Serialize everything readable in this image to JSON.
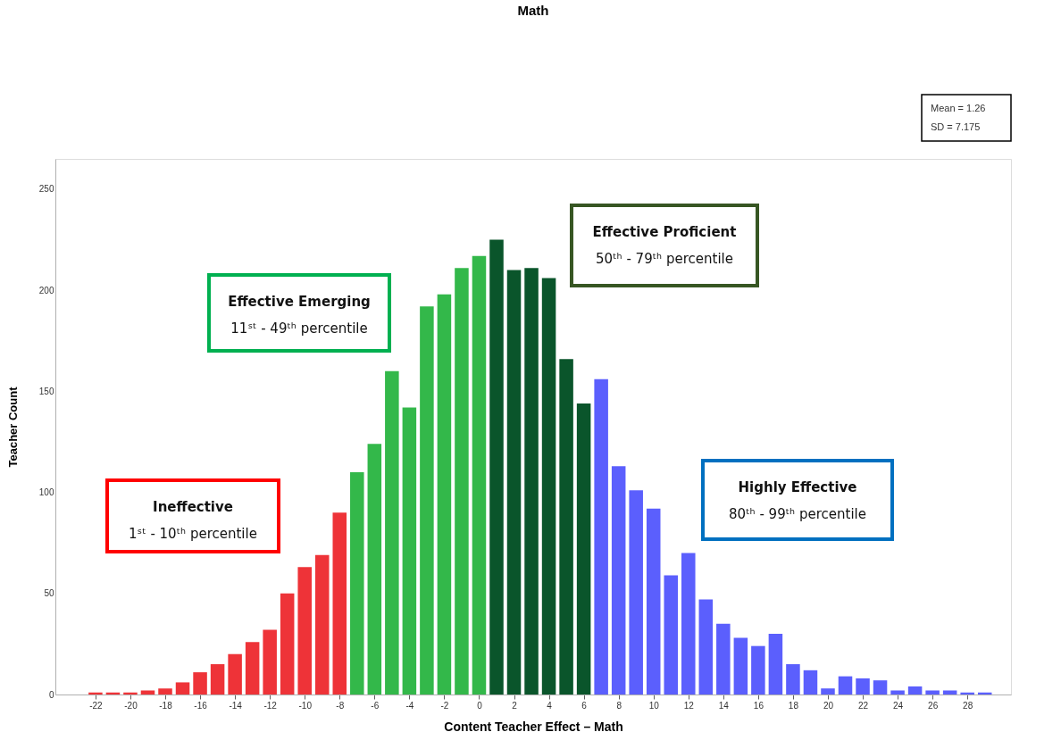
{
  "chart_data": {
    "type": "histogram",
    "title": "Math",
    "xlabel": "Content Teacher Effect – Math",
    "ylabel": "Teacher Count",
    "bins": [
      -22.5,
      -21.5,
      -20.5,
      -19.5,
      -18.5,
      -17.5,
      -16.5,
      -15.5,
      -14.5,
      -13.5,
      -12.5,
      -11.5,
      -10.5,
      -9.5,
      -8.5,
      -7.5,
      -6.5,
      -5.5,
      -4.5,
      -3.5,
      -2.5,
      -1.5,
      -0.5,
      0.5,
      1.5,
      2.5,
      3.5,
      4.5,
      5.5,
      6.5,
      7.5,
      8.5,
      9.5,
      10.5,
      11.5,
      12.5,
      13.5,
      14.5,
      15.5,
      16.5,
      17.5,
      18.5,
      19.5,
      20.5,
      21.5,
      22.5,
      23.5,
      24.5,
      25.5,
      26.5,
      27.5,
      28.5,
      29.5
    ],
    "values": [
      1,
      1,
      1,
      2,
      3,
      6,
      11,
      15,
      20,
      26,
      32,
      50,
      63,
      69,
      90,
      110,
      124,
      160,
      142,
      192,
      198,
      211,
      217,
      225,
      210,
      211,
      206,
      166,
      144,
      156,
      113,
      101,
      92,
      59,
      70,
      47,
      35,
      28,
      24,
      30,
      15,
      12,
      3,
      9,
      8,
      7,
      2,
      4,
      2,
      2,
      1,
      1
    ],
    "colors": [
      "#ee3338",
      "#ee3338",
      "#ee3338",
      "#ee3338",
      "#ee3338",
      "#ee3338",
      "#ee3338",
      "#ee3338",
      "#ee3338",
      "#ee3338",
      "#ee3338",
      "#ee3338",
      "#ee3338",
      "#ee3338",
      "#ee3338",
      "#33b84a",
      "#33b84a",
      "#33b84a",
      "#33b84a",
      "#33b84a",
      "#33b84a",
      "#33b84a",
      "#33b84a",
      "#0a552b",
      "#0a552b",
      "#0a552b",
      "#0a552b",
      "#0a552b",
      "#0a552b",
      "#5b5ffd",
      "#5b5ffd",
      "#5b5ffd",
      "#5b5ffd",
      "#5b5ffd",
      "#5b5ffd",
      "#5b5ffd",
      "#5b5ffd",
      "#5b5ffd",
      "#5b5ffd",
      "#5b5ffd",
      "#5b5ffd",
      "#5b5ffd",
      "#5b5ffd",
      "#5b5ffd",
      "#5b5ffd",
      "#5b5ffd",
      "#5b5ffd",
      "#5b5ffd",
      "#5b5ffd",
      "#5b5ffd",
      "#5b5ffd",
      "#5b5ffd"
    ],
    "xlim": [
      -24.3,
      30.5
    ],
    "ylim": [
      0,
      265
    ],
    "xticks": [
      -22,
      -20,
      -18,
      -16,
      -14,
      -12,
      -10,
      -8,
      -6,
      -4,
      -2,
      0,
      2,
      4,
      6,
      8,
      10,
      12,
      14,
      16,
      18,
      20,
      22,
      24,
      26,
      28
    ],
    "yticks": [
      0,
      50,
      100,
      150,
      200,
      250
    ],
    "grid": false,
    "annotations": [
      "Ineffective\n1ˢᵗ - 10ᵗʰ percentile",
      "Effective Emerging\n11ˢᵗ - 49ᵗʰ percentile",
      "Effective Proficient\n50ᵗʰ - 79ᵗʰ percentile",
      "Highly Effective\n80ᵗʰ - 99ᵗʰ percentile",
      "Mean = 1.26\nSD = 7.175"
    ]
  }
}
